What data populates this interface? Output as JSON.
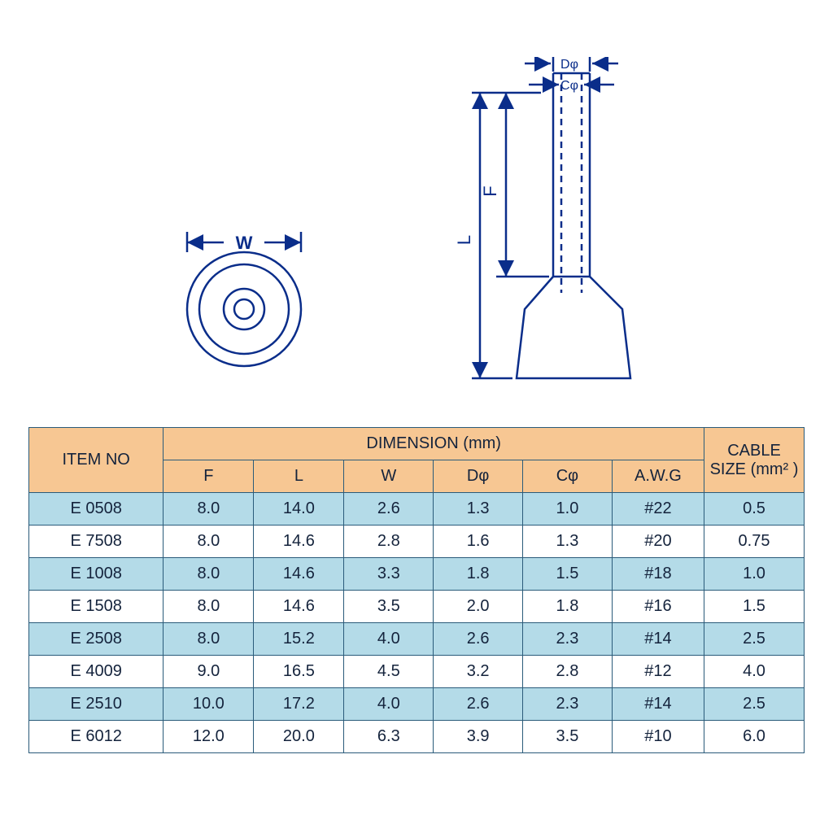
{
  "diagram": {
    "labels": {
      "W": "W",
      "L": "L",
      "F": "F",
      "D": "Dφ",
      "C": "Cφ"
    },
    "stroke_color": "#0a2d8a",
    "stroke_width": 2.5,
    "font_family": "Arial",
    "label_fontsize": 22,
    "arrowhead": "triangle"
  },
  "table": {
    "header_bg": "#f7c793",
    "row_bg_even": "#b4dbe8",
    "row_bg_odd": "#ffffff",
    "border_color": "#2a5b7a",
    "text_color": "#14233c",
    "font_size": 20,
    "headers": {
      "item_no": "ITEM NO",
      "dimension_group": "DIMENSION  (mm)",
      "F": "F",
      "L": "L",
      "W": "W",
      "D": "Dφ",
      "C": "Cφ",
      "AWG": "A.W.G",
      "cable_size": "CABLE SIZE (mm² )"
    },
    "rows": [
      {
        "item": "E 0508",
        "F": "8.0",
        "L": "14.0",
        "W": "2.6",
        "D": "1.3",
        "C": "1.0",
        "AWG": "#22",
        "cable": "0.5"
      },
      {
        "item": "E 7508",
        "F": "8.0",
        "L": "14.6",
        "W": "2.8",
        "D": "1.6",
        "C": "1.3",
        "AWG": "#20",
        "cable": "0.75"
      },
      {
        "item": "E 1008",
        "F": "8.0",
        "L": "14.6",
        "W": "3.3",
        "D": "1.8",
        "C": "1.5",
        "AWG": "#18",
        "cable": "1.0"
      },
      {
        "item": "E 1508",
        "F": "8.0",
        "L": "14.6",
        "W": "3.5",
        "D": "2.0",
        "C": "1.8",
        "AWG": "#16",
        "cable": "1.5"
      },
      {
        "item": "E 2508",
        "F": "8.0",
        "L": "15.2",
        "W": "4.0",
        "D": "2.6",
        "C": "2.3",
        "AWG": "#14",
        "cable": "2.5"
      },
      {
        "item": "E 4009",
        "F": "9.0",
        "L": "16.5",
        "W": "4.5",
        "D": "3.2",
        "C": "2.8",
        "AWG": "#12",
        "cable": "4.0"
      },
      {
        "item": "E 2510",
        "F": "10.0",
        "L": "17.2",
        "W": "4.0",
        "D": "2.6",
        "C": "2.3",
        "AWG": "#14",
        "cable": "2.5"
      },
      {
        "item": "E 6012",
        "F": "12.0",
        "L": "20.0",
        "W": "6.3",
        "D": "3.9",
        "C": "3.5",
        "AWG": "#10",
        "cable": "6.0"
      }
    ]
  }
}
